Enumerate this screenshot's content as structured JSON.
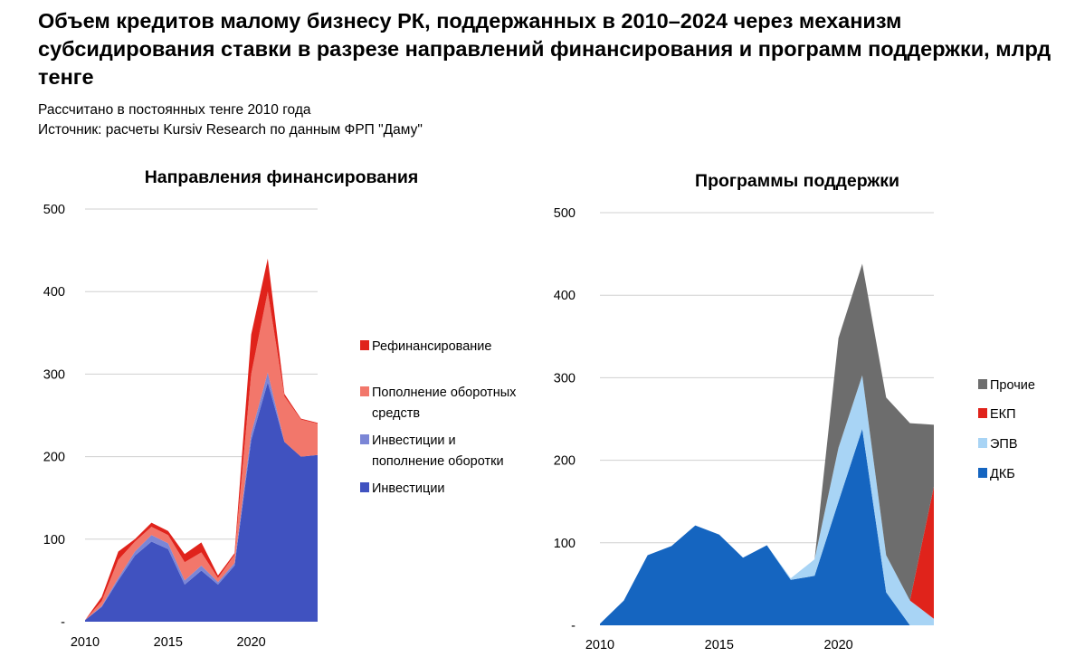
{
  "header": {
    "title": "Объем кредитов малому бизнесу РК, поддержанных в 2010–2024 через механизм субсидирования ставки в разрезе направлений финансирования и программ поддержки, млрд тенге",
    "subtitle_1": "Рассчитано в постоянных тенге 2010 года",
    "subtitle_2": "Источник: расчеты Kursiv Research по данным ФРП \"Даму\""
  },
  "chart_data": [
    {
      "type": "area",
      "stacked": true,
      "title": "Направления финансирования",
      "x": [
        2010,
        2011,
        2012,
        2013,
        2014,
        2015,
        2016,
        2017,
        2018,
        2019,
        2020,
        2021,
        2022,
        2023,
        2024
      ],
      "x_tick_labels": [
        "2010",
        "2015",
        "2020"
      ],
      "y_tick_labels": [
        "-",
        "100",
        "200",
        "300",
        "400",
        "500"
      ],
      "ylim": [
        0,
        500
      ],
      "grid": true,
      "legend_position": "right",
      "series": [
        {
          "name": "Инвестиции",
          "color": "#4052c0",
          "values": [
            2,
            18,
            50,
            80,
            97,
            88,
            45,
            62,
            45,
            68,
            220,
            290,
            218,
            200,
            202
          ]
        },
        {
          "name": "Инвестиции и пополнение оборотки",
          "color": "#7b86d6",
          "values": [
            0,
            1,
            3,
            5,
            8,
            7,
            5,
            6,
            3,
            3,
            8,
            12,
            0,
            0,
            0
          ]
        },
        {
          "name": "Пополнение оборотных средств",
          "color": "#f2776b",
          "values": [
            0,
            6,
            22,
            12,
            10,
            10,
            22,
            16,
            5,
            10,
            72,
            98,
            55,
            45,
            38
          ]
        },
        {
          "name": "Рефинансирование",
          "color": "#e0231b",
          "values": [
            0,
            5,
            10,
            3,
            5,
            5,
            10,
            12,
            3,
            2,
            48,
            40,
            3,
            1,
            1
          ]
        }
      ]
    },
    {
      "type": "area",
      "stacked": true,
      "title": "Программы поддержки",
      "x": [
        2010,
        2011,
        2012,
        2013,
        2014,
        2015,
        2016,
        2017,
        2018,
        2019,
        2020,
        2021,
        2022,
        2023,
        2024
      ],
      "x_tick_labels": [
        "2010",
        "2015",
        "2020"
      ],
      "y_tick_labels": [
        "-",
        "100",
        "200",
        "300",
        "400",
        "500"
      ],
      "ylim": [
        0,
        500
      ],
      "grid": true,
      "legend_position": "right",
      "series": [
        {
          "name": "ДКБ",
          "color": "#1565c0",
          "values": [
            2,
            30,
            85,
            96,
            121,
            110,
            82,
            97,
            55,
            60,
            150,
            238,
            40,
            0,
            0
          ]
        },
        {
          "name": "ЭПВ",
          "color": "#a8d4f5",
          "values": [
            0,
            0,
            0,
            0,
            0,
            0,
            0,
            0,
            2,
            20,
            65,
            65,
            45,
            30,
            8
          ]
        },
        {
          "name": "ЕКП",
          "color": "#e0231b",
          "values": [
            0,
            0,
            0,
            0,
            0,
            0,
            0,
            0,
            0,
            0,
            0,
            0,
            0,
            0,
            160
          ]
        },
        {
          "name": "Прочие",
          "color": "#6d6d6d",
          "values": [
            0,
            0,
            0,
            0,
            0,
            0,
            0,
            0,
            0,
            0,
            133,
            135,
            191,
            215,
            75
          ]
        }
      ]
    }
  ]
}
